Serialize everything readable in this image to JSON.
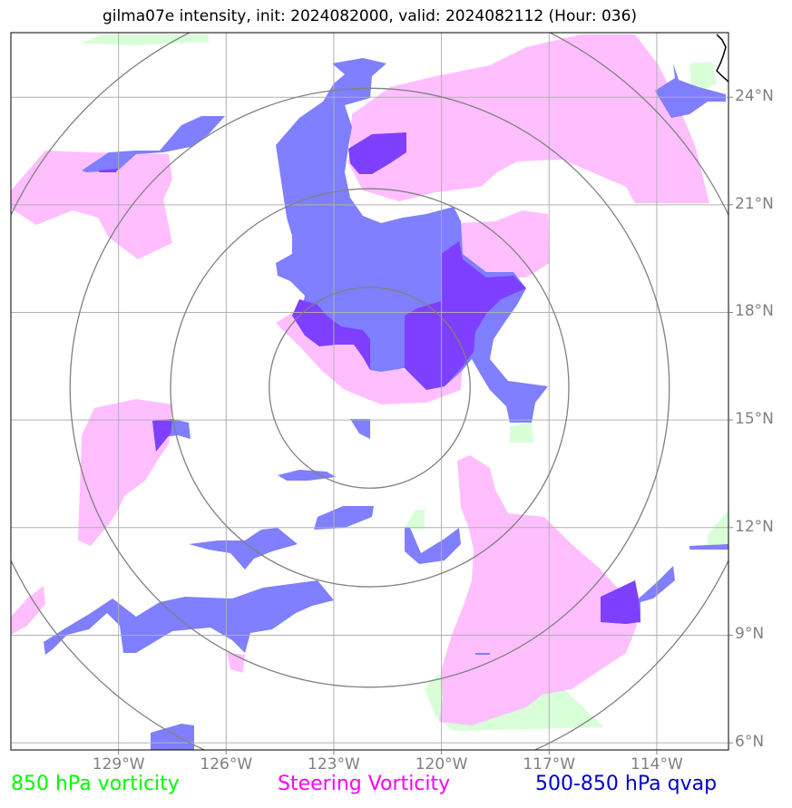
{
  "title": "gilma07e intensity, init: 2024082000, valid: 2024082112 (Hour: 036)",
  "x_ticks": [
    {
      "label": "129°W",
      "lon": -129
    },
    {
      "label": "126°W",
      "lon": -126
    },
    {
      "label": "123°W",
      "lon": -123
    },
    {
      "label": "120°W",
      "lon": -120
    },
    {
      "label": "117°W",
      "lon": -117
    },
    {
      "label": "114°W",
      "lon": -114
    }
  ],
  "y_ticks": [
    {
      "label": "24°N",
      "lat": 24
    },
    {
      "label": "21°N",
      "lat": 21
    },
    {
      "label": "18°N",
      "lat": 18
    },
    {
      "label": "15°N",
      "lat": 15
    },
    {
      "label": "12°N",
      "lat": 12
    },
    {
      "label": "9°N",
      "lat": 9
    },
    {
      "label": "6°N",
      "lat": 6
    }
  ],
  "extent": {
    "lon": [
      -132,
      -112
    ],
    "lat": [
      5.8,
      25.8
    ]
  },
  "legend": [
    {
      "label": "850 hPa vorticity",
      "color": "#00ff00"
    },
    {
      "label": "Steering Vorticity",
      "color": "#ff00ff"
    },
    {
      "label": "500-850 hPa qvap",
      "color": "#0000cc"
    }
  ],
  "colors": {
    "vorticity_850": "#d9ffd9",
    "steering_vorticity": "#ffbfff",
    "qvap": "#7f7fff",
    "qvap_overlap": "#7f3fff",
    "grid": "#b0b0b0",
    "rings": "#808080"
  },
  "ring_center": {
    "lon": -122,
    "lat": 15.9
  }
}
